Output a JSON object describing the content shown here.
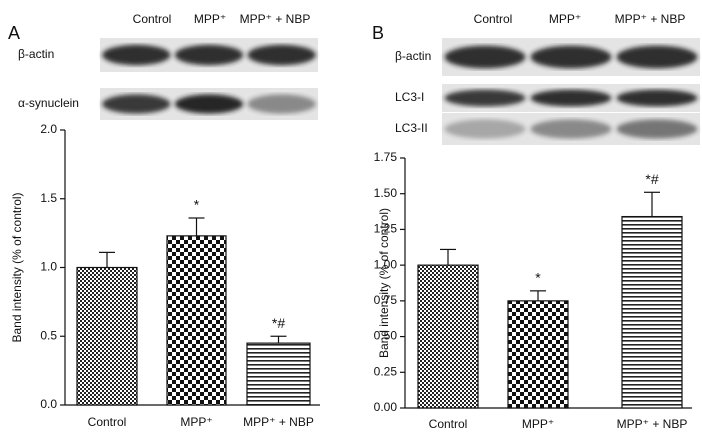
{
  "chart_data": [
    {
      "type": "bar",
      "panel": "A",
      "blot_columns": [
        "Control",
        "MPP⁺",
        "MPP⁺ + NBP"
      ],
      "blot_rows": [
        "β-actin",
        "α-synuclein"
      ],
      "ylabel": "Band intensity (% of control)",
      "categories": [
        "Control",
        "MPP⁺",
        "MPP⁺ + NBP"
      ],
      "values": [
        1.0,
        1.23,
        0.45
      ],
      "errors": [
        0.11,
        0.13,
        0.05
      ],
      "annotations": [
        null,
        "*",
        "*#"
      ],
      "ylim": [
        0,
        2
      ],
      "yticks": [
        {
          "value": 0,
          "label": "0.0"
        },
        {
          "value": 0.5,
          "label": "0.5"
        },
        {
          "value": 1,
          "label": "1.0"
        },
        {
          "value": 1.5,
          "label": "1.5"
        },
        {
          "value": 2,
          "label": "2.0"
        }
      ]
    },
    {
      "type": "bar",
      "panel": "B",
      "blot_columns": [
        "Control",
        "MPP⁺",
        "MPP⁺ + NBP"
      ],
      "blot_rows": [
        "β-actin",
        "LC3-I",
        "LC3-II"
      ],
      "ylabel": "Band intensity (% of control)",
      "categories": [
        "Control",
        "MPP⁺",
        "MPP⁺ + NBP"
      ],
      "values": [
        1.0,
        0.75,
        1.34
      ],
      "errors": [
        0.11,
        0.07,
        0.17
      ],
      "annotations": [
        null,
        "*",
        "*#"
      ],
      "ylim": [
        0,
        1.75
      ],
      "yticks": [
        {
          "value": 0,
          "label": "0.00"
        },
        {
          "value": 0.25,
          "label": "0.25"
        },
        {
          "value": 0.5,
          "label": "0.50"
        },
        {
          "value": 0.75,
          "label": "0.75"
        },
        {
          "value": 1,
          "label": "1.00"
        },
        {
          "value": 1.25,
          "label": "1.25"
        },
        {
          "value": 1.5,
          "label": "1.50"
        },
        {
          "value": 1.75,
          "label": "1.75"
        }
      ]
    }
  ]
}
